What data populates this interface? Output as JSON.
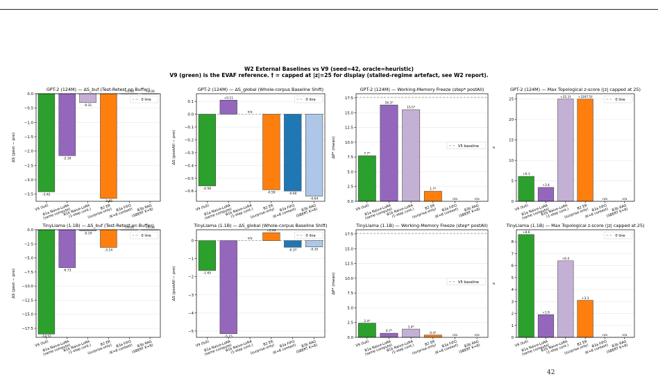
{
  "figure": {
    "suptitle_line1": "W2 External Baselines vs V9  (seed=42, oracle=heuristic)",
    "suptitle_line2": "V9 (green) is the EVAF reference. † = capped at |z|=25 for display (stalled-regime artefact, see W2 report).",
    "footer": "42"
  },
  "colors": {
    "V9": "#2ca02c",
    "B1a": "#9467bd",
    "B1b": "#c5b0d5",
    "B2": "#ff7f0e",
    "B3a": "#1f77b4",
    "B3b": "#aec7e8"
  },
  "chart_data": [
    {
      "type": "bar",
      "title": "GPT-2 (124M) — ΔS_buf  (Test-Retest on Buffer)",
      "ylabel": "ΔS (post − pre)",
      "categories": [
        "V9 (full)",
        "B1a Naive-LoRA\n(same compute)",
        "B1b Naive-LoRA\n(1-step cont.)",
        "B2 ER\n(surprise-only)",
        "B3a FIFO\n(K=8 context)",
        "B3b RAG\n(SBERT K=8)"
      ],
      "values": [
        -3.42,
        -2.16,
        -0.31,
        -3.65,
        0.0,
        0.0
      ],
      "labels": [
        "-3.42",
        "-2.16",
        "-0.31",
        "-3.65",
        "+0.00",
        "+0.00"
      ],
      "ylim": [
        -3.75,
        0.0
      ],
      "yticks": [
        0.0,
        -0.5,
        -1.0,
        -1.5,
        -2.0,
        -2.5,
        -3.0,
        -3.5
      ],
      "ytick_labels": [
        "0.0",
        "−0.5",
        "−1.0",
        "−1.5",
        "−2.0",
        "−2.5",
        "−3.0",
        "−3.5"
      ],
      "legend": "0 line",
      "legend_position": "top-right",
      "ref_line": 0,
      "grid": true
    },
    {
      "type": "bar",
      "title": "GPT-2 (124M) — ΔS_global  (Whole-corpus Baseline Shift)",
      "ylabel": "ΔS (postAll − pre)",
      "categories": [
        "V9 (full)",
        "B1a Naive-LoRA\n(same compute)",
        "B1b Naive-LoRA\n(1-step cont.)",
        "B2 ER\n(surprise-only)",
        "B3a FIFO\n(K=8 context)",
        "B3b RAG\n(SBERT K=8)"
      ],
      "values": [
        -0.56,
        0.11,
        null,
        -0.59,
        -0.6,
        -0.64
      ],
      "labels": [
        "-0.56",
        "+0.11",
        "n/a",
        "-0.59",
        "-0.60",
        "-0.64"
      ],
      "ylim": [
        -0.68,
        0.16
      ],
      "yticks": [
        0.1,
        0.0,
        -0.1,
        -0.2,
        -0.3,
        -0.4,
        -0.5,
        -0.6
      ],
      "ytick_labels": [
        "0.1",
        "0.0",
        "−0.1",
        "−0.2",
        "−0.3",
        "−0.4",
        "−0.5",
        "−0.6"
      ],
      "legend": "0 line",
      "legend_position": "top-right",
      "ref_line": 0,
      "grid": true
    },
    {
      "type": "bar",
      "title": "GPT-2 (124M) — Working-Memory Freeze  (step* postAll)",
      "ylabel": "ΔP* (mean)",
      "categories": [
        "V9 (full)",
        "B1a Naive-LoRA\n(same compute)",
        "B1b Naive-LoRA\n(1-step cont.)",
        "B2 ER\n(surprise-only)",
        "B3a FIFO\n(K=8 context)",
        "B3b RAG\n(SBERT K=8)"
      ],
      "values": [
        7.7,
        16.3,
        15.5,
        1.7,
        null,
        null
      ],
      "labels": [
        "7.7*",
        "16.3*",
        "15.5*",
        "1.7*",
        "n/a",
        "n/a"
      ],
      "ylim": [
        0,
        18.2
      ],
      "yticks": [
        0.0,
        2.5,
        5.0,
        7.5,
        10.0,
        12.5,
        15.0,
        17.5
      ],
      "ytick_labels": [
        "0.0",
        "2.5",
        "5.0",
        "7.5",
        "10.0",
        "12.5",
        "15.0",
        "17.5"
      ],
      "legend": "V5 baseline",
      "legend_position": "center-right",
      "ref_line": 17.6,
      "grid": true
    },
    {
      "type": "bar",
      "title": "GPT-2 (124M) — Max Topological z-score  (|z| capped at 25)",
      "ylabel": "z",
      "categories": [
        "V9 (full)",
        "B1a Naive-LoRA\n(same compute)",
        "B1b Naive-LoRA\n(1-step cont.)",
        "B2 ER\n(surprise-only)",
        "B3a FIFO\n(K=8 context)",
        "B3b RAG\n(SBERT K=8)"
      ],
      "values": [
        6.1,
        3.4,
        25,
        25,
        null,
        null
      ],
      "labels": [
        "+6.1",
        "+3.4",
        "+25.1†",
        "+3197.5†",
        "n/a",
        "n/a"
      ],
      "ylim": [
        0,
        26.3
      ],
      "yticks": [
        0,
        5,
        10,
        15,
        20,
        25
      ],
      "ytick_labels": [
        "0",
        "5",
        "10",
        "15",
        "20",
        "25"
      ],
      "legend": "0 line",
      "legend_position": "top-right",
      "ref_line": 0,
      "grid": true
    },
    {
      "type": "bar",
      "title": "TinyLlama (1.1B) — ΔS_buf  (Test-Retest on Buffer)",
      "ylabel": "ΔS (post − pre)",
      "categories": [
        "V9 (full)",
        "B1a Naive-LoRA\n(same compute)",
        "B1b Naive-LoRA\n(1-step cont.)",
        "B2 ER\n(surprise-only)",
        "B3a FIFO\n(K=8 context)",
        "B3b RAG\n(SBERT K=8)"
      ],
      "values": [
        -18.51,
        -6.73,
        -0.19,
        -3.14,
        0.0,
        0.0
      ],
      "labels": [
        "-18.51",
        "-6.73",
        "-0.19",
        "-3.14",
        "+0.00",
        "+0.00"
      ],
      "ylim": [
        -19.1,
        0.0
      ],
      "yticks": [
        0.0,
        -2.5,
        -5.0,
        -7.5,
        -10.0,
        -12.5,
        -15.0,
        -17.5
      ],
      "ytick_labels": [
        "0.0",
        "−2.5",
        "−5.0",
        "−7.5",
        "−10.0",
        "−12.5",
        "−15.0",
        "−17.5"
      ],
      "legend": "0 line",
      "legend_position": "top-right",
      "ref_line": 0,
      "grid": true
    },
    {
      "type": "bar",
      "title": "TinyLlama (1.1B) — ΔS_global  (Whole-corpus Baseline Shift)",
      "ylabel": "ΔS (postAll − pre)",
      "categories": [
        "V9 (full)",
        "B1a Naive-LoRA\n(same compute)",
        "B1b Naive-LoRA\n(1-step cont.)",
        "B2 ER\n(surprise-only)",
        "B3a FIFO\n(K=8 context)",
        "B3b RAG\n(SBERT K=8)"
      ],
      "values": [
        -1.65,
        -5.15,
        null,
        0.44,
        -0.37,
        -0.35
      ],
      "labels": [
        "-1.65",
        "-5.15",
        "n/a",
        "+0.44",
        "-0.37",
        "-0.35"
      ],
      "ylim": [
        -5.35,
        0.6
      ],
      "yticks": [
        0,
        -1,
        -2,
        -3,
        -4,
        -5
      ],
      "ytick_labels": [
        "0",
        "−1",
        "−2",
        "−3",
        "−4",
        "−5"
      ],
      "legend": "0 line",
      "legend_position": "top-right",
      "ref_line": 0,
      "grid": true
    },
    {
      "type": "bar",
      "title": "TinyLlama (1.1B) — Working-Memory Freeze  (step* postAll)",
      "ylabel": "ΔP* (mean)",
      "categories": [
        "V9 (full)",
        "B1a Naive-LoRA\n(same compute)",
        "B1b Naive-LoRA\n(1-step cont.)",
        "B2 ER\n(surprise-only)",
        "B3a FIFO\n(K=8 context)",
        "B3b RAG\n(SBERT K=8)"
      ],
      "values": [
        2.4,
        0.7,
        1.4,
        0.4,
        null,
        null
      ],
      "labels": [
        "2.4*",
        "0.7*",
        "1.4*",
        "0.4*",
        "n/a",
        "n/a"
      ],
      "ylim": [
        0,
        18.2
      ],
      "yticks": [
        0.0,
        2.5,
        5.0,
        7.5,
        10.0,
        12.5,
        15.0,
        17.5
      ],
      "ytick_labels": [
        "0.0",
        "2.5",
        "5.0",
        "7.5",
        "10.0",
        "12.5",
        "15.0",
        "17.5"
      ],
      "legend": "V5 baseline",
      "legend_position": "center-right",
      "ref_line": 17.6,
      "grid": true
    },
    {
      "type": "bar",
      "title": "TinyLlama (1.1B) — Max Topological z-score  (|z| capped at 25)",
      "ylabel": "z",
      "categories": [
        "V9 (full)",
        "B1a Naive-LoRA\n(same compute)",
        "B1b Naive-LoRA\n(1-step cont.)",
        "B2 ER\n(surprise-only)",
        "B3a FIFO\n(K=8 context)",
        "B3b RAG\n(SBERT K=8)"
      ],
      "values": [
        8.6,
        1.9,
        6.4,
        3.1,
        null,
        null
      ],
      "labels": [
        "+8.6",
        "+1.9",
        "+6.4",
        "+3.1",
        "n/a",
        "n/a"
      ],
      "ylim": [
        0,
        9.0
      ],
      "yticks": [
        0,
        1,
        2,
        3,
        4,
        5,
        6,
        7,
        8
      ],
      "ytick_labels": [
        "0",
        "1",
        "2",
        "3",
        "4",
        "5",
        "6",
        "7",
        "8"
      ],
      "legend": "0 line",
      "legend_position": "top-right",
      "ref_line": 0,
      "grid": true
    }
  ]
}
